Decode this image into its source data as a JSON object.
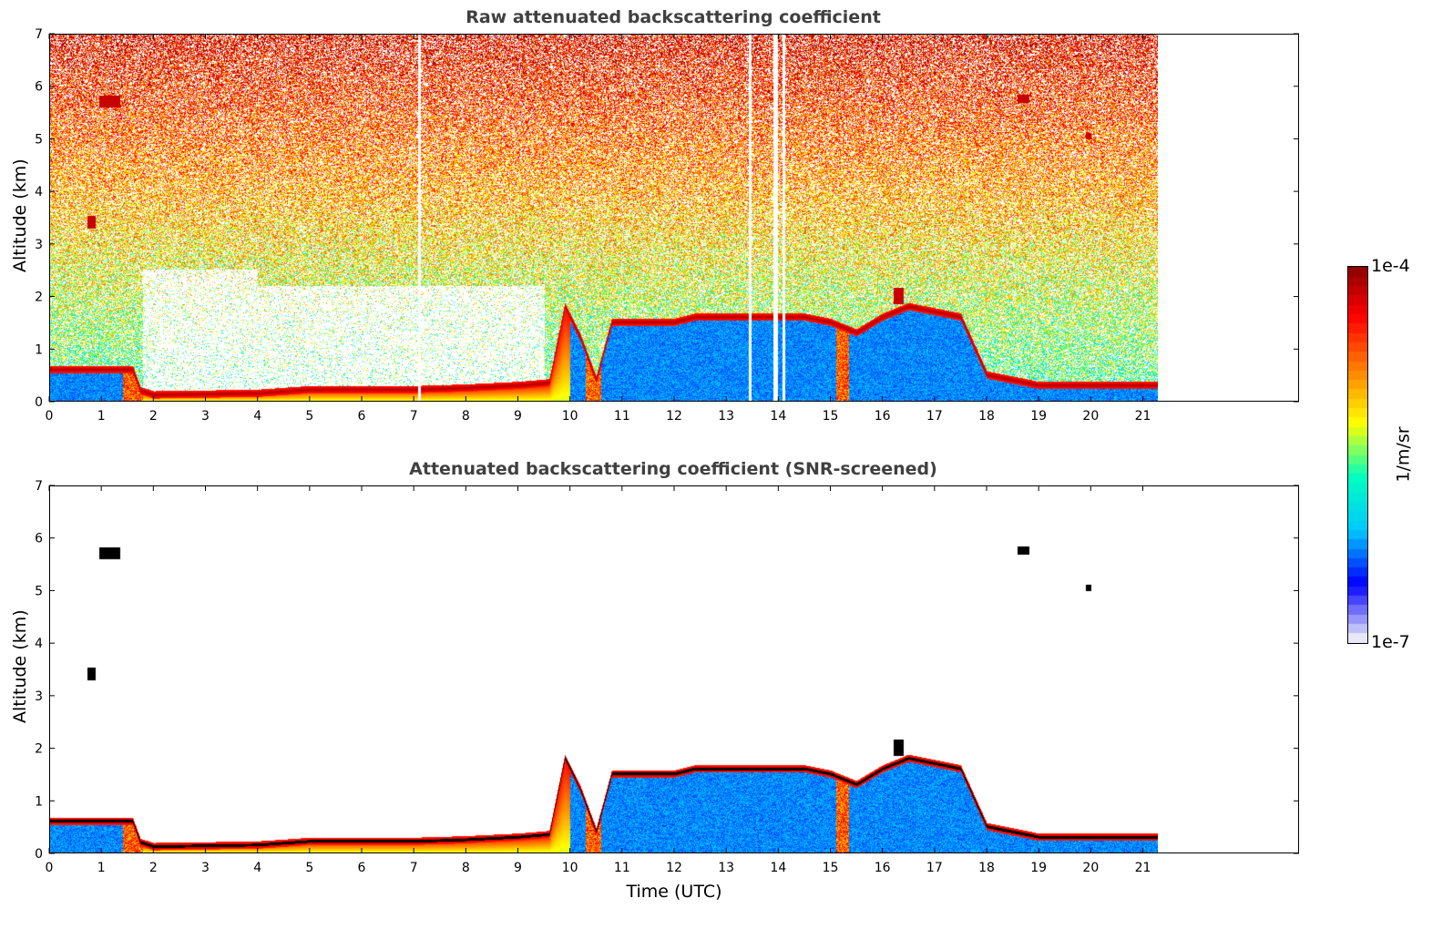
{
  "chart_data": [
    {
      "type": "heatmap",
      "title": "Raw attenuated backscattering coefficient",
      "xlabel": "",
      "ylabel": "Altitude (km)",
      "xlim": [
        0,
        24
      ],
      "ylim": [
        0,
        7
      ],
      "x_ticks": [
        "0",
        "1",
        "2",
        "3",
        "4",
        "5",
        "6",
        "7",
        "8",
        "9",
        "10",
        "11",
        "12",
        "13",
        "14",
        "15",
        "16",
        "17",
        "18",
        "19",
        "20",
        "21"
      ],
      "y_ticks": [
        "0",
        "1",
        "2",
        "3",
        "4",
        "5",
        "6",
        "7"
      ],
      "data_end_time": 21.3,
      "data_gaps": [
        [
          7.07,
          7.13
        ],
        [
          13.42,
          13.47
        ],
        [
          13.9,
          13.98
        ],
        [
          14.08,
          14.13
        ]
      ],
      "boundary_layer_top": [
        [
          0,
          0.6
        ],
        [
          1.6,
          0.6
        ],
        [
          1.75,
          0.2
        ],
        [
          2,
          0.12
        ],
        [
          4,
          0.15
        ],
        [
          5,
          0.22
        ],
        [
          7,
          0.22
        ],
        [
          8,
          0.25
        ],
        [
          9,
          0.3
        ],
        [
          9.6,
          0.35
        ],
        [
          9.9,
          1.8
        ],
        [
          10.2,
          1.2
        ],
        [
          10.5,
          0.4
        ],
        [
          10.8,
          1.5
        ],
        [
          12,
          1.5
        ],
        [
          12.4,
          1.6
        ],
        [
          14.5,
          1.6
        ],
        [
          15,
          1.5
        ],
        [
          15.5,
          1.3
        ],
        [
          16,
          1.6
        ],
        [
          16.5,
          1.8
        ],
        [
          17,
          1.7
        ],
        [
          17.5,
          1.6
        ],
        [
          18,
          0.5
        ],
        [
          19,
          0.3
        ],
        [
          20,
          0.3
        ],
        [
          21.3,
          0.3
        ]
      ]
    },
    {
      "type": "heatmap",
      "title": "Attenuated backscattering coefficient (SNR-screened)",
      "xlabel": "Time (UTC)",
      "ylabel": "Altitude (km)",
      "xlim": [
        0,
        24
      ],
      "ylim": [
        0,
        7
      ],
      "x_ticks": [
        "0",
        "1",
        "2",
        "3",
        "4",
        "5",
        "6",
        "7",
        "8",
        "9",
        "10",
        "11",
        "12",
        "13",
        "14",
        "15",
        "16",
        "17",
        "18",
        "19",
        "20",
        "21"
      ],
      "y_ticks": [
        "0",
        "1",
        "2",
        "3",
        "4",
        "5",
        "6",
        "7"
      ],
      "data_end_time": 21.3
    }
  ],
  "colorbar": {
    "label": "1/m/sr",
    "max_label": "1e-4",
    "min_label": "1e-7",
    "colormap": "jet",
    "colors": [
      "#e8e8f8",
      "#0000ff",
      "#00c8ff",
      "#00ffc0",
      "#ffff00",
      "#ff8000",
      "#ff0000",
      "#800000"
    ]
  }
}
